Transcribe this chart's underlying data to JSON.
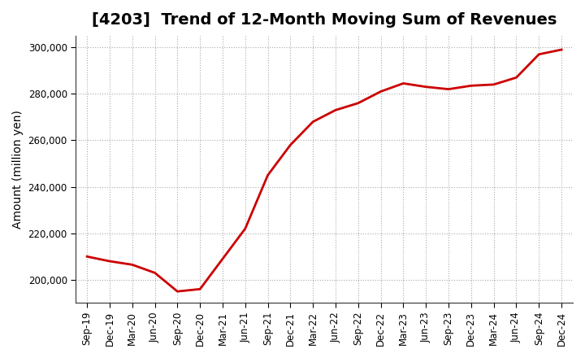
{
  "title": "[4203]  Trend of 12-Month Moving Sum of Revenues",
  "ylabel": "Amount (million yen)",
  "background_color": "#ffffff",
  "line_color": "#cc0000",
  "grid_color": "#aaaaaa",
  "x_labels": [
    "Sep-19",
    "Dec-19",
    "Mar-20",
    "Jun-20",
    "Sep-20",
    "Dec-20",
    "Mar-21",
    "Jun-21",
    "Sep-21",
    "Dec-21",
    "Mar-22",
    "Jun-22",
    "Sep-22",
    "Dec-22",
    "Mar-23",
    "Jun-23",
    "Sep-23",
    "Dec-23",
    "Mar-24",
    "Jun-24",
    "Sep-24",
    "Dec-24"
  ],
  "values": [
    210000,
    208000,
    206500,
    203000,
    195000,
    196000,
    209000,
    222000,
    245000,
    258000,
    268000,
    273000,
    276000,
    281000,
    284500,
    283000,
    282000,
    283500,
    284000,
    287000,
    297000,
    299000
  ],
  "ylim": [
    190000,
    305000
  ],
  "yticks": [
    200000,
    220000,
    240000,
    260000,
    280000,
    300000
  ],
  "title_fontsize": 14,
  "label_fontsize": 10,
  "tick_fontsize": 8.5
}
